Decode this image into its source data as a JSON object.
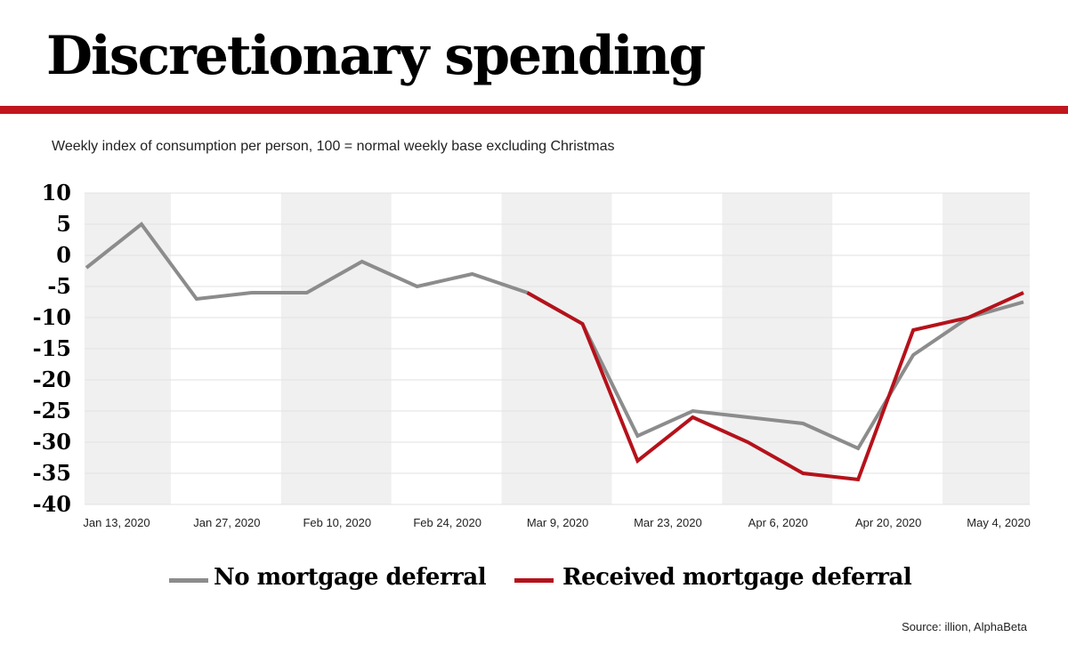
{
  "title": "Discretionary spending",
  "subtitle": "Weekly index of consumption per person, 100 = normal weekly base excluding Christmas",
  "source": "Source: illion, AlphaBeta",
  "chart_data": {
    "type": "line",
    "title": "Discretionary spending",
    "subtitle": "Weekly index of consumption per person, 100 = normal weekly base excluding Christmas",
    "xlabel": "",
    "ylabel": "",
    "ylim": [
      -40,
      10
    ],
    "yticks": [
      10,
      5,
      0,
      -5,
      -10,
      -15,
      -20,
      -25,
      -30,
      -35,
      -40
    ],
    "x": [
      "Jan 13, 2020",
      "Jan 20, 2020",
      "Jan 27, 2020",
      "Feb 3, 2020",
      "Feb 10, 2020",
      "Feb 17, 2020",
      "Feb 24, 2020",
      "Mar 2, 2020",
      "Mar 9, 2020",
      "Mar 16, 2020",
      "Mar 23, 2020",
      "Mar 30, 2020",
      "Apr 6, 2020",
      "Apr 13, 2020",
      "Apr 20, 2020",
      "Apr 27, 2020",
      "May 4, 2020",
      "May 11, 2020"
    ],
    "xtick_labels": [
      "Jan 13, 2020",
      "Jan 27, 2020",
      "Feb 10, 2020",
      "Feb 24, 2020",
      "Mar 9, 2020",
      "Mar 23, 2020",
      "Apr 6, 2020",
      "Apr 20, 2020",
      "May 4, 2020"
    ],
    "grid": true,
    "legend_position": "bottom",
    "series": [
      {
        "name": "No mortgage deferral",
        "color": "#8c8c8c",
        "values": [
          -2,
          5,
          -7,
          -6,
          -6,
          -1,
          -5,
          -3,
          -6,
          -11,
          -29,
          -25,
          -26,
          -27,
          -31,
          -16,
          -10,
          -7.5
        ]
      },
      {
        "name": "Received mortgage deferral",
        "color": "#b5121b",
        "values": [
          null,
          null,
          null,
          null,
          null,
          null,
          null,
          null,
          -6,
          -11,
          -33,
          -26,
          -30,
          -35,
          -36,
          -12,
          -10,
          -6
        ]
      }
    ]
  }
}
